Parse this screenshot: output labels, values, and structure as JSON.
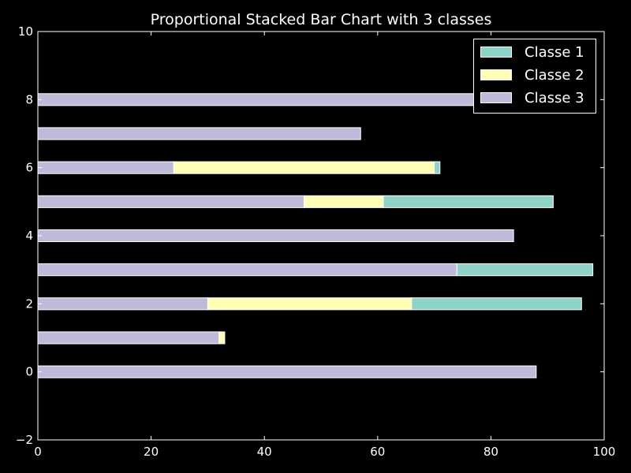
{
  "chart_data": {
    "type": "bar",
    "orientation": "horizontal",
    "stacked": true,
    "title": "Proportional Stacked Bar Chart with 3 classes",
    "xlabel": "",
    "ylabel": "",
    "xlim": [
      0,
      100
    ],
    "ylim": [
      -2,
      10
    ],
    "x_ticks": [
      "0",
      "20",
      "40",
      "60",
      "80",
      "100"
    ],
    "y_ticks": [
      "−2",
      "0",
      "2",
      "4",
      "6",
      "8",
      "10"
    ],
    "categories": [
      0,
      1,
      2,
      3,
      4,
      5,
      6,
      7,
      8
    ],
    "grid": false,
    "legend_position": "top-right",
    "stack_order": [
      "Classe 3",
      "Classe 2",
      "Classe 1"
    ],
    "series": [
      {
        "name": "Classe 1",
        "color": "#8dd3c7",
        "values": [
          0,
          0,
          30,
          24,
          0,
          30,
          1,
          0,
          0
        ]
      },
      {
        "name": "Classe 2",
        "color": "#ffffb3",
        "values": [
          0,
          1,
          36,
          0,
          0,
          14,
          46,
          0,
          0
        ]
      },
      {
        "name": "Classe 3",
        "color": "#bebada",
        "values": [
          88,
          32,
          30,
          74,
          84,
          47,
          24,
          57,
          78
        ]
      }
    ]
  }
}
